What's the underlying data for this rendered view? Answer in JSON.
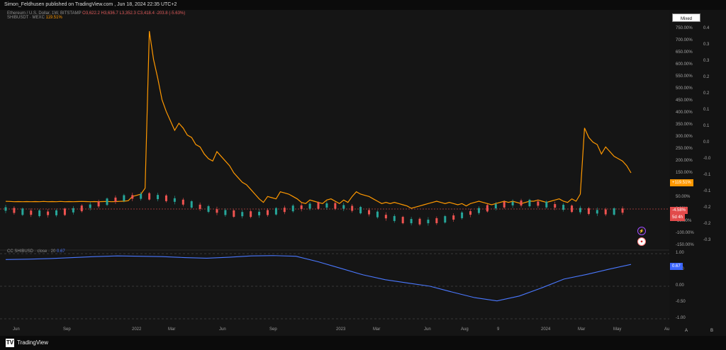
{
  "header": {
    "author": "Simon_Feldhusen",
    "source": "TradingView.com",
    "published": "Jun 18, 2024 22:35 UTC+2"
  },
  "legend": {
    "eth": {
      "label": "Ethereum / U.S. Dollar, 1W, BITSTAMP",
      "ohlc": "O3,622.2  H3,636.7  L3,352.3  C3,418.4  -203.8 (-5.63%)"
    },
    "shib": {
      "label": "SHIBUSDT · MEXC",
      "value": "119.51%"
    },
    "corr": {
      "label": "CC  SHIBUSD · close · 20",
      "value": "0.67"
    }
  },
  "controls": {
    "mixed": "Mixed",
    "a_button": "A",
    "b_button": "B"
  },
  "scales": {
    "percent_labels": [
      "750.00%",
      "700.00%",
      "650.00%",
      "600.00%",
      "550.00%",
      "500.00%",
      "450.00%",
      "400.00%",
      "350.00%",
      "300.00%",
      "250.00%",
      "200.00%",
      "150.00%",
      "100.00%",
      "50.00%",
      "0.00%",
      "-50.00%",
      "-100.00%",
      "-150.00%"
    ],
    "value_labels": [
      "0.4",
      "0.3",
      "0.3",
      "0.2",
      "0.2",
      "0.1",
      "0.1",
      "0.0",
      "-0.0",
      "-0.1",
      "-0.1",
      "-0.2",
      "-0.2",
      "-0.3"
    ],
    "lower_labels": [
      "1.00",
      "0.50",
      "0.00",
      "-0.50",
      "-1.00"
    ],
    "chips": {
      "shib": "+119.51%",
      "eth": "-4.58%",
      "eth_sub": "5d 4h",
      "corr": "0.67"
    }
  },
  "time_axis": {
    "labels": [
      "Jun",
      "Sep",
      "2022",
      "Mar",
      "Jun",
      "Sep",
      "2023",
      "Mar",
      "Jun",
      "Aug",
      "9",
      "2024",
      "Mar",
      "May",
      "Au"
    ]
  },
  "icons": {
    "flash": "flash-icon",
    "flag": "us-flag-icon",
    "logo": "tradingview-logo-icon"
  },
  "chart_data": {
    "type": "line",
    "series": [
      {
        "name": "SHIBUSDT · MEXC",
        "color": "#ff9800",
        "points": [
          [
            0,
            -0.5
          ],
          [
            1,
            -1
          ],
          [
            2,
            -2
          ],
          [
            3,
            -1.5
          ],
          [
            4,
            -2
          ],
          [
            5,
            -1.5
          ],
          [
            6,
            -2
          ],
          [
            7,
            -1.5
          ],
          [
            8,
            -2
          ],
          [
            9,
            -1
          ],
          [
            10,
            -2
          ],
          [
            11,
            -1.5
          ],
          [
            12,
            -2
          ],
          [
            13,
            -1
          ],
          [
            14,
            -2
          ],
          [
            15,
            -1.5
          ],
          [
            16,
            -2
          ],
          [
            17,
            -1.5
          ],
          [
            18,
            -1
          ],
          [
            19,
            -1.5
          ],
          [
            20,
            -2
          ],
          [
            21,
            -1.5
          ],
          [
            22,
            -2
          ],
          [
            23,
            -1.5
          ],
          [
            24,
            -1
          ],
          [
            25,
            -2
          ],
          [
            26,
            -1.5
          ],
          [
            27,
            -0.5
          ],
          [
            28,
            0
          ],
          [
            29,
            2
          ],
          [
            30,
            20
          ],
          [
            31,
            25
          ],
          [
            32,
            30
          ],
          [
            33,
            55
          ],
          [
            34,
            720
          ],
          [
            35,
            600
          ],
          [
            36,
            520
          ],
          [
            37,
            430
          ],
          [
            38,
            380
          ],
          [
            39,
            340
          ],
          [
            40,
            300
          ],
          [
            41,
            330
          ],
          [
            42,
            310
          ],
          [
            43,
            280
          ],
          [
            44,
            270
          ],
          [
            45,
            240
          ],
          [
            46,
            230
          ],
          [
            47,
            200
          ],
          [
            48,
            180
          ],
          [
            49,
            170
          ],
          [
            50,
            210
          ],
          [
            51,
            190
          ],
          [
            52,
            170
          ],
          [
            53,
            150
          ],
          [
            54,
            120
          ],
          [
            55,
            100
          ],
          [
            56,
            80
          ],
          [
            57,
            70
          ],
          [
            58,
            50
          ],
          [
            59,
            30
          ],
          [
            60,
            10
          ],
          [
            61,
            -5
          ],
          [
            62,
            20
          ],
          [
            63,
            15
          ],
          [
            64,
            10
          ],
          [
            65,
            40
          ],
          [
            66,
            35
          ],
          [
            67,
            30
          ],
          [
            68,
            20
          ],
          [
            69,
            10
          ],
          [
            70,
            -5
          ],
          [
            71,
            -10
          ],
          [
            72,
            5
          ],
          [
            73,
            0
          ],
          [
            74,
            -5
          ],
          [
            75,
            -10
          ],
          [
            76,
            5
          ],
          [
            77,
            10
          ],
          [
            78,
            0
          ],
          [
            79,
            -10
          ],
          [
            80,
            5
          ],
          [
            81,
            -5
          ],
          [
            82,
            20
          ],
          [
            83,
            40
          ],
          [
            84,
            30
          ],
          [
            85,
            25
          ],
          [
            86,
            20
          ],
          [
            87,
            10
          ],
          [
            88,
            0
          ],
          [
            89,
            -10
          ],
          [
            90,
            -5
          ],
          [
            91,
            -10
          ],
          [
            92,
            -5
          ],
          [
            93,
            -10
          ],
          [
            94,
            -15
          ],
          [
            95,
            -20
          ],
          [
            96,
            -30
          ],
          [
            97,
            -25
          ],
          [
            98,
            -20
          ],
          [
            99,
            -15
          ],
          [
            100,
            -10
          ],
          [
            101,
            -5
          ],
          [
            102,
            0
          ],
          [
            103,
            -5
          ],
          [
            104,
            -10
          ],
          [
            105,
            -5
          ],
          [
            106,
            -10
          ],
          [
            107,
            -15
          ],
          [
            108,
            -10
          ],
          [
            109,
            -20
          ],
          [
            110,
            -10
          ],
          [
            111,
            -5
          ],
          [
            112,
            0
          ],
          [
            113,
            -5
          ],
          [
            114,
            -10
          ],
          [
            115,
            -15
          ],
          [
            116,
            -10
          ],
          [
            117,
            -5
          ],
          [
            118,
            0
          ],
          [
            119,
            -5
          ],
          [
            120,
            0
          ],
          [
            121,
            -5
          ],
          [
            122,
            -10
          ],
          [
            123,
            -5
          ],
          [
            124,
            0
          ],
          [
            125,
            0
          ],
          [
            126,
            5
          ],
          [
            127,
            0
          ],
          [
            128,
            -5
          ],
          [
            129,
            0
          ],
          [
            130,
            5
          ],
          [
            131,
            10
          ],
          [
            132,
            0
          ],
          [
            133,
            -5
          ],
          [
            134,
            10
          ],
          [
            135,
            0
          ],
          [
            136,
            30
          ],
          [
            137,
            310
          ],
          [
            138,
            270
          ],
          [
            139,
            250
          ],
          [
            140,
            240
          ],
          [
            141,
            200
          ],
          [
            142,
            230
          ],
          [
            143,
            210
          ],
          [
            144,
            190
          ],
          [
            145,
            180
          ],
          [
            146,
            170
          ],
          [
            147,
            150
          ],
          [
            148,
            120
          ]
        ]
      },
      {
        "name": "CC SHIBUSD · close · 20",
        "color": "#4a78ff",
        "points": [
          [
            0,
            0.82
          ],
          [
            5,
            0.83
          ],
          [
            10,
            0.85
          ],
          [
            15,
            0.88
          ],
          [
            20,
            0.91
          ],
          [
            25,
            0.93
          ],
          [
            30,
            0.92
          ],
          [
            35,
            0.91
          ],
          [
            40,
            0.88
          ],
          [
            45,
            0.86
          ],
          [
            50,
            0.89
          ],
          [
            55,
            0.93
          ],
          [
            60,
            0.94
          ],
          [
            65,
            0.92
          ],
          [
            70,
            0.75
          ],
          [
            75,
            0.55
          ],
          [
            80,
            0.35
          ],
          [
            85,
            0.2
          ],
          [
            90,
            0.1
          ],
          [
            95,
            0.0
          ],
          [
            100,
            -0.18
          ],
          [
            105,
            -0.35
          ],
          [
            110,
            -0.45
          ],
          [
            115,
            -0.3
          ],
          [
            120,
            -0.05
          ],
          [
            125,
            0.22
          ],
          [
            130,
            0.36
          ],
          [
            135,
            0.52
          ],
          [
            140,
            0.67
          ]
        ]
      }
    ],
    "ylim_main": [
      -150,
      750
    ],
    "ylim_lower": [
      -1,
      1
    ],
    "grid": true
  }
}
